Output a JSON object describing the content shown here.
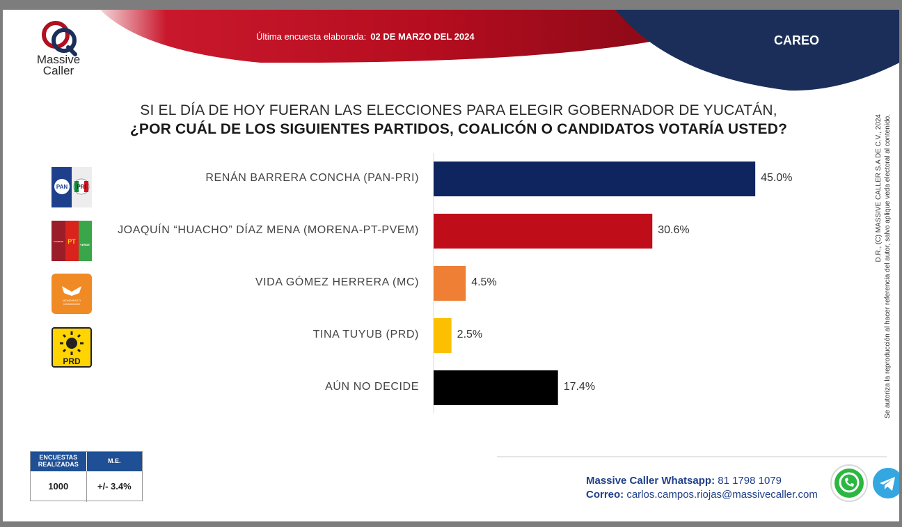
{
  "brand": {
    "name_line1": "Massive",
    "name_line2": "Caller"
  },
  "header": {
    "survey_label": "Última encuesta elaborada:",
    "survey_date": "02 DE MARZO DEL 2024",
    "section": "CAREO"
  },
  "question": {
    "line1": "SI EL DÍA DE HOY FUERAN LAS ELECCIONES PARA ELEGIR GOBERNADOR DE YUCATÁN,",
    "line2": "¿POR CUÁL DE LOS SIGUIENTES  PARTIDOS,  COALICÓN  O CANDIDATOS  VOTARÍA USTED?"
  },
  "chart_data": {
    "type": "bar",
    "orientation": "horizontal",
    "categories": [
      "RENÁN BARRERA CONCHA  (PAN-PRI)",
      "JOAQUÍN “HUACHO” DÍAZ MENA  (MORENA-PT-PVEM)",
      "VIDA GÓMEZ HERRERA (MC)",
      "TINA TUYUB (PRD)",
      "AÚN NO DECIDE"
    ],
    "values": [
      45.0,
      30.6,
      4.5,
      2.5,
      17.4
    ],
    "value_labels": [
      "45.0%",
      "30.6%",
      "4.5%",
      "2.5%",
      "17.4%"
    ],
    "colors": [
      "#0f2560",
      "#c00d1a",
      "#ee7f35",
      "#fcc000",
      "#000000"
    ],
    "xlim": [
      0,
      50
    ],
    "grid": false,
    "legend": "none"
  },
  "party_logos": [
    {
      "icon": "pan-pri-logo",
      "text_a": "PAN",
      "text_b": "PRI"
    },
    {
      "icon": "morena-pt-pvem-logo",
      "text_a": "morena",
      "text_b": "PT",
      "text_c": "VERDE"
    },
    {
      "icon": "movimiento-ciudadano-logo",
      "text_a": "MOVIMIENTO",
      "text_b": "CIUDADANO"
    },
    {
      "icon": "prd-logo",
      "text_a": "PRD"
    }
  ],
  "side_note": {
    "line1": "D.R., (C) MASSIVE CALLER S.A DE C.V., 2024",
    "line2": "Se autoriza la reproducción al hacer referencia del autor, salvo aplique veda electoral al contenido."
  },
  "stats": {
    "header_left": "ENCUESTAS REALIZADAS",
    "header_right": "M.E.",
    "value_left": "1000",
    "value_right": "+/- 3.4%"
  },
  "contact": {
    "whatsapp_label": "Massive Caller Whatsapp:",
    "whatsapp_number": "81 1798  1079",
    "email_label": "Correo:",
    "email": "carlos.campos.riojas@massivecaller.com"
  },
  "colors": {
    "red": "#c8102e",
    "navy": "#1b2e5a",
    "accent_blue": "#1f4f94"
  }
}
